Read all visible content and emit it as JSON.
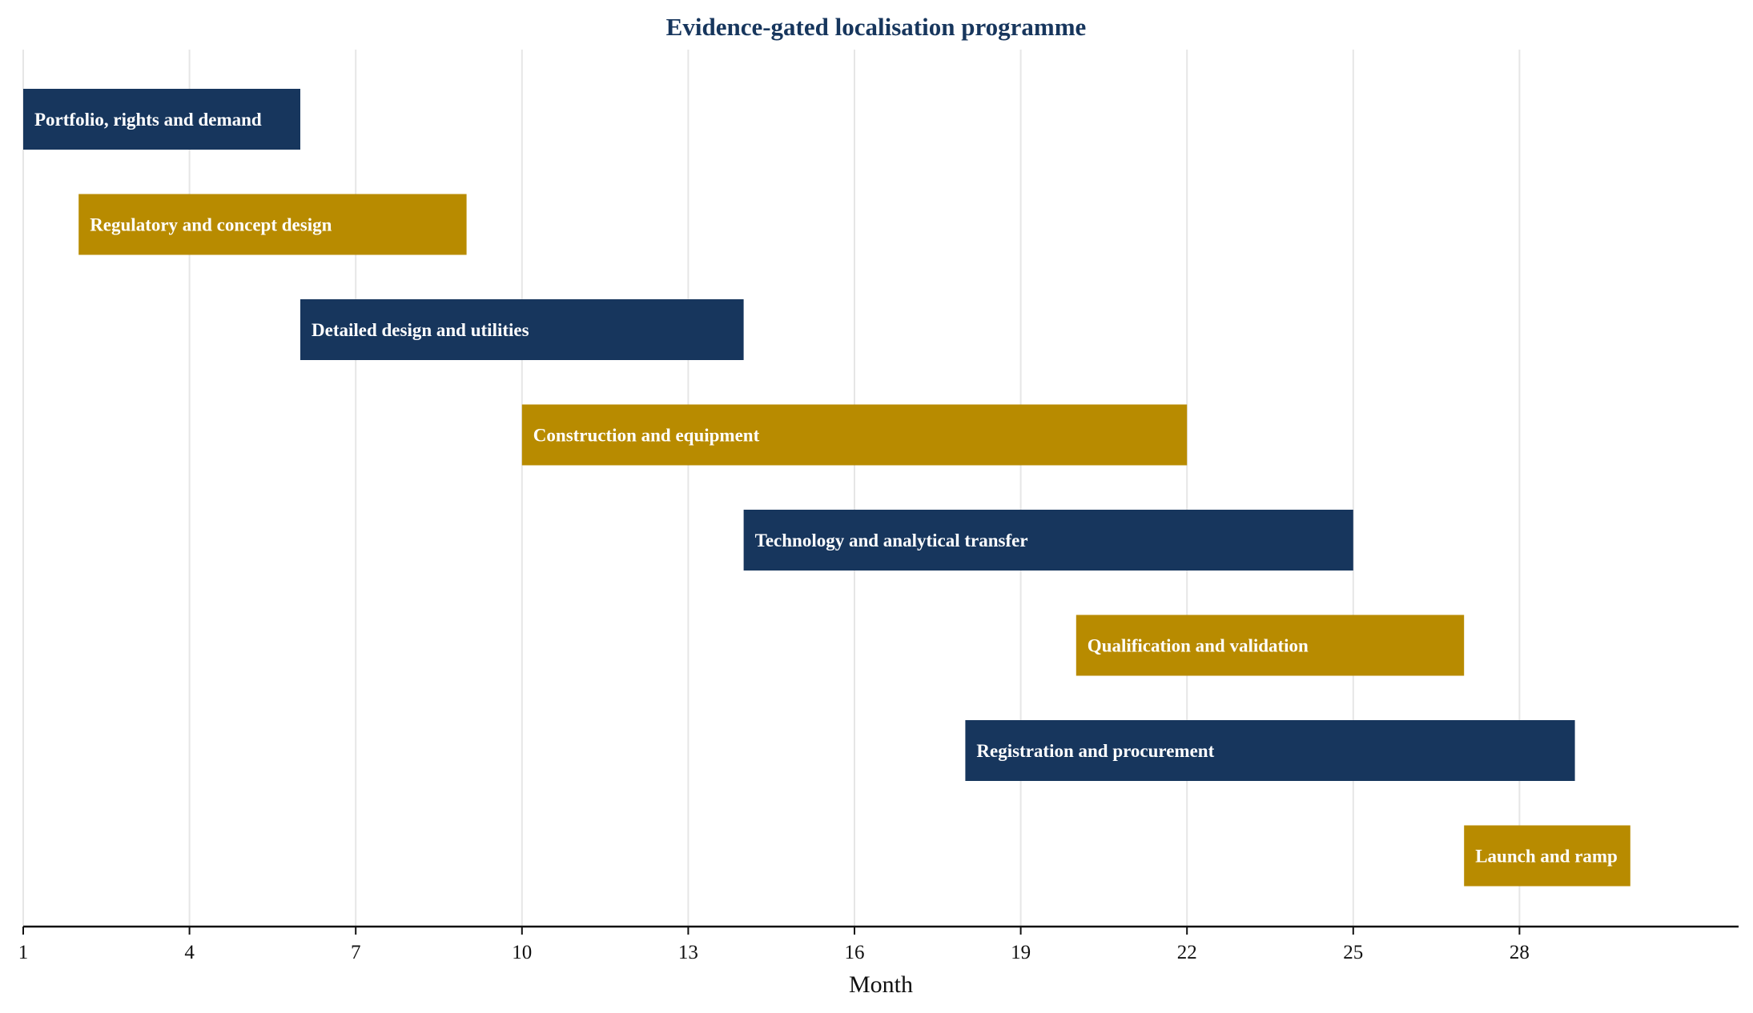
{
  "chart_data": {
    "type": "gantt",
    "title": "Evidence-gated localisation programme",
    "xlabel": "Month",
    "ylabel": "",
    "xlim": [
      1,
      32
    ],
    "x_ticks": [
      1,
      4,
      7,
      10,
      13,
      16,
      19,
      22,
      25,
      28
    ],
    "grid": true,
    "colors": {
      "title": "#17365d",
      "navy": "#17365d",
      "gold": "#b88b00",
      "grid": "#e6e6e6",
      "axis": "#111111"
    },
    "tasks": [
      {
        "name": "Portfolio, rights and demand",
        "start": 1,
        "end": 6,
        "color": "navy"
      },
      {
        "name": "Regulatory and concept design",
        "start": 2,
        "end": 9,
        "color": "gold"
      },
      {
        "name": "Detailed design and utilities",
        "start": 6,
        "end": 14,
        "color": "navy"
      },
      {
        "name": "Construction and equipment",
        "start": 10,
        "end": 22,
        "color": "gold"
      },
      {
        "name": "Technology and analytical transfer",
        "start": 14,
        "end": 25,
        "color": "navy"
      },
      {
        "name": "Qualification and validation",
        "start": 20,
        "end": 27,
        "color": "gold"
      },
      {
        "name": "Registration and procurement",
        "start": 18,
        "end": 29,
        "color": "navy"
      },
      {
        "name": "Launch and ramp",
        "start": 27,
        "end": 30,
        "color": "gold"
      }
    ]
  }
}
